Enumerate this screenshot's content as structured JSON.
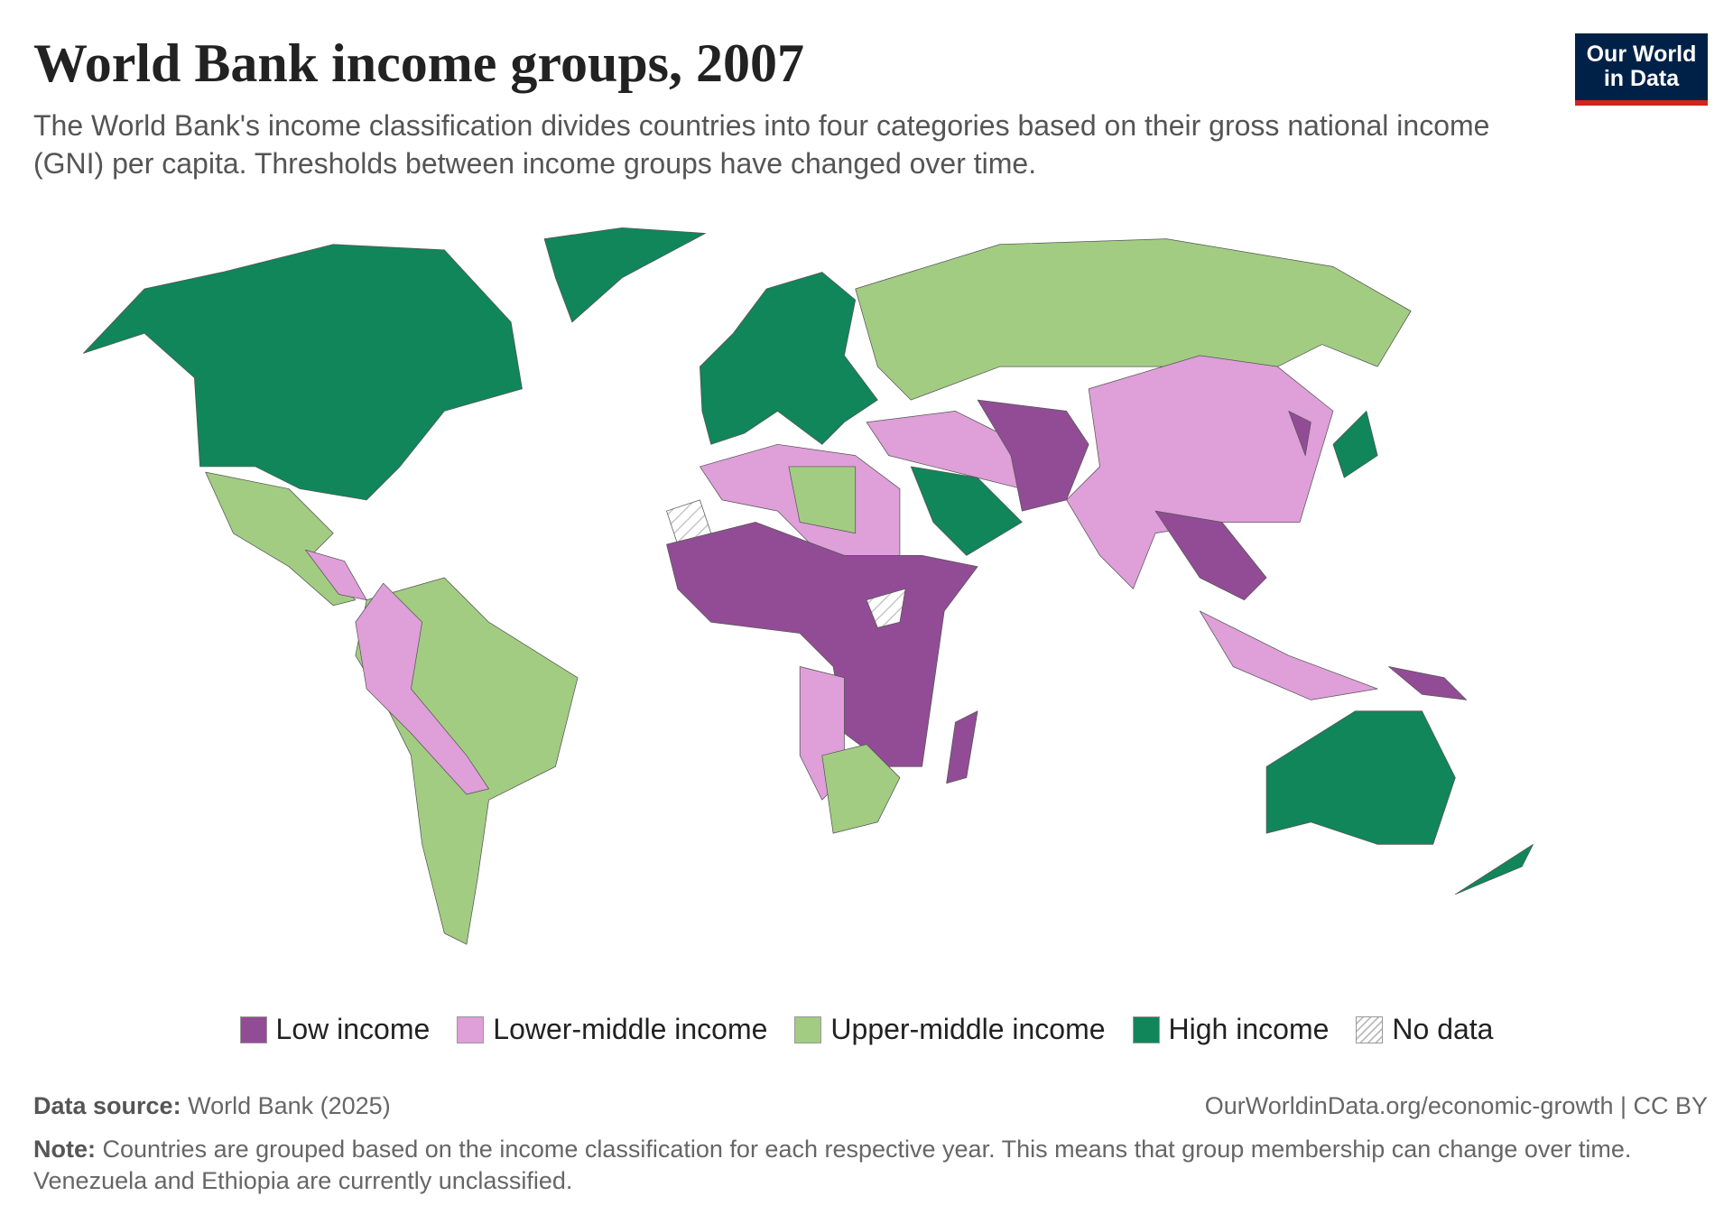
{
  "header": {
    "title": "World Bank income groups, 2007",
    "subtitle": "The World Bank's income classification divides countries into four categories based on their gross national income (GNI) per capita. Thresholds between income groups have changed over time.",
    "logo": [
      "Our World",
      "in Data"
    ]
  },
  "legend": [
    {
      "label": "Low income",
      "color": "#924c95"
    },
    {
      "label": "Lower-middle income",
      "color": "#df9fd9"
    },
    {
      "label": "Upper-middle income",
      "color": "#a2cc82"
    },
    {
      "label": "High income",
      "color": "#10865a"
    },
    {
      "label": "No data",
      "color": "hatch"
    }
  ],
  "footer": {
    "source_label": "Data source:",
    "source": "World Bank (2025)",
    "url": "OurWorldinData.org/economic-growth | CC BY",
    "note_label": "Note:",
    "note": "Countries are grouped based on the income classification for each respective year. This means that group membership can change over time. Venezuela and Ethiopia are currently unclassified."
  }
}
